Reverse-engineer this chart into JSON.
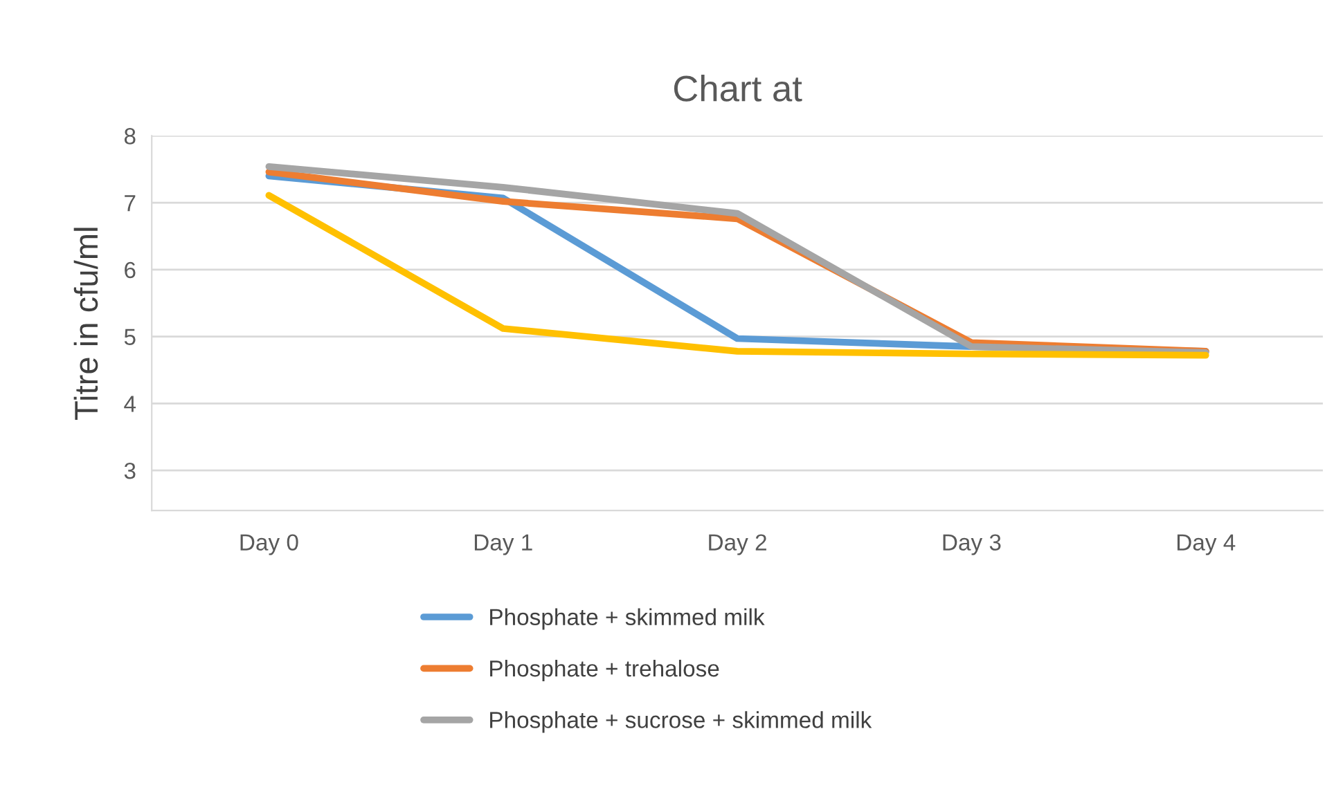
{
  "chart_data": {
    "type": "line",
    "title": "Chart at",
    "ylabel": "Titre in cfu/ml",
    "categories": [
      "Day 0",
      "Day 1",
      "Day 2",
      "Day 3",
      "Day 4"
    ],
    "series": [
      {
        "name": "Phosphate + skimmed milk",
        "color": "#5b9bd5",
        "values": [
          7.4,
          7.07,
          4.97,
          4.85,
          4.78
        ]
      },
      {
        "name": "Phosphate + trehalose",
        "color": "#ed7d31",
        "values": [
          7.46,
          7.02,
          6.76,
          4.91,
          4.78
        ]
      },
      {
        "name": "Phosphate + sucrose + skimmed milk",
        "color": "#a5a5a5",
        "values": [
          7.54,
          7.23,
          6.84,
          4.85,
          4.76
        ]
      },
      {
        "color": "#ffc000",
        "values": [
          7.11,
          5.12,
          4.78,
          4.74,
          4.72
        ]
      }
    ],
    "ylim": [
      2.4,
      8
    ],
    "yticks": [
      3,
      4,
      5,
      6,
      7,
      8
    ],
    "grid": "y",
    "legend": "bottom",
    "marker": "none",
    "line_style": "solid"
  }
}
